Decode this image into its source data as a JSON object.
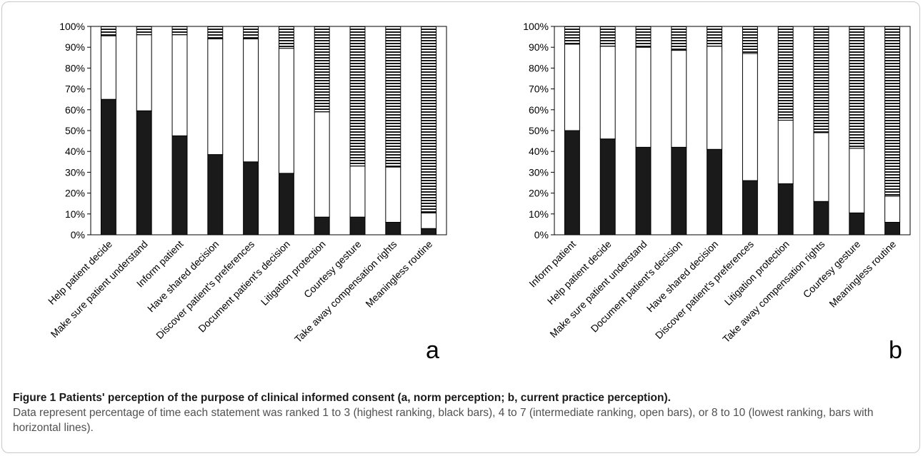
{
  "chart_data": [
    {
      "type": "bar",
      "stacked": true,
      "panel_label": "a",
      "categories": [
        "Help patient decide",
        "Make sure patient understand",
        "Inform patient",
        "Have shared decision",
        "Discover patient's preferences",
        "Document patient's decision",
        "Litigation protection",
        "Courtesy gesture",
        "Take away compensation rights",
        "Meaningless routine"
      ],
      "series": [
        {
          "pattern": "solid-black",
          "values": [
            65,
            59.5,
            47.5,
            38.5,
            35,
            29.5,
            8.5,
            8.5,
            6,
            3
          ]
        },
        {
          "pattern": "open",
          "values": [
            30.5,
            36.5,
            48.5,
            55.5,
            59,
            60,
            50.5,
            24.5,
            26.5,
            7.5
          ]
        },
        {
          "pattern": "horizontal-lines",
          "values": [
            4.5,
            4,
            4,
            6,
            6,
            10.5,
            41,
            67,
            67.5,
            89.5
          ]
        }
      ],
      "yticks": [
        "0%",
        "10%",
        "20%",
        "30%",
        "40%",
        "50%",
        "60%",
        "70%",
        "80%",
        "90%",
        "100%"
      ],
      "ylim": [
        0,
        100
      ],
      "grid": false
    },
    {
      "type": "bar",
      "stacked": true,
      "panel_label": "b",
      "categories": [
        "Inform patient",
        "Help patient decide",
        "Make sure patient understand",
        "Document patient's decision",
        "Have shared decision",
        "Discover patient's preferences",
        "Litigation protection",
        "Take away compensation rights",
        "Courtesy gesture",
        "Meaningless routine"
      ],
      "series": [
        {
          "pattern": "solid-black",
          "values": [
            50,
            46,
            42,
            42,
            41,
            26,
            24.5,
            16,
            10.5,
            6
          ]
        },
        {
          "pattern": "open",
          "values": [
            41.5,
            44.5,
            48,
            46.5,
            49.5,
            61,
            30.5,
            33,
            31,
            12.5
          ]
        },
        {
          "pattern": "horizontal-lines",
          "values": [
            8.5,
            9.5,
            10,
            11.5,
            9.5,
            13,
            45,
            51,
            58.5,
            81.5
          ]
        }
      ],
      "yticks": [
        "0%",
        "10%",
        "20%",
        "30%",
        "40%",
        "50%",
        "60%",
        "70%",
        "80%",
        "90%",
        "100%"
      ],
      "ylim": [
        0,
        100
      ],
      "grid": false
    }
  ],
  "caption": {
    "title": "Figure 1 Patients' perception of the purpose of clinical informed consent (a, norm perception; b, current practice perception).",
    "body": "Data represent percentage of time each statement was ranked 1 to 3 (highest ranking, black bars), 4 to 7 (intermediate ranking, open bars), or 8 to 10 (lowest ranking, bars with horizontal lines)."
  },
  "colors": {
    "solid": "#1a1a1a",
    "open": "#ffffff",
    "stripe": "#1a1a1a",
    "axis": "#000000"
  }
}
